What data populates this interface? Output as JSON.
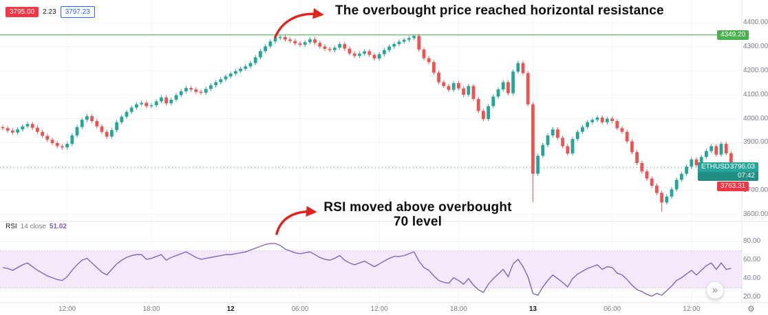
{
  "header": {
    "bid": "3795.00",
    "spread": "2.23",
    "ask": "3797.23",
    "bid_color": "#f23645",
    "ask_color": "#2962ff"
  },
  "annotations": {
    "resistance_note": "The overbought price reached horizontal resistance",
    "rsi_note_line1": "RSI moved above overbought",
    "rsi_note_line2": "70 level",
    "arrow_color": "#e0231c"
  },
  "price_axis": {
    "labels": [
      "4400.00",
      "4300.00",
      "4200.00",
      "4100.00",
      "4000.00",
      "3900.00",
      "3700.00",
      "3600.00"
    ],
    "resistance_badge": {
      "value": "4349.20",
      "color": "#4caf50"
    },
    "symbol_badge": {
      "symbol": "ETHUSD",
      "price": "3796.03",
      "countdown": "07:42",
      "color": "#26a69a"
    },
    "alert_badge": {
      "value": "3763.31",
      "color": "#f23645"
    }
  },
  "rsi_pane": {
    "label": "RSI",
    "params": "14 close",
    "value": "51.02",
    "axis_labels": [
      "80.00",
      "60.00",
      "40.00",
      "20.00"
    ]
  },
  "controls": {
    "scroll_right": "»",
    "settings_icon": "⚙"
  },
  "chart_data": {
    "type": "candlestick",
    "title": "ETHUSD intraday with RSI(14)",
    "legend_position": "none",
    "grid": true,
    "price": {
      "ylim": [
        3571,
        4495
      ],
      "gridlines": [
        3600,
        3700,
        3800,
        3900,
        4000,
        4100,
        4200,
        4300,
        4400
      ],
      "resistance_level": 4349.2,
      "last_price": 3796.03,
      "open0": 3965,
      "wick": 9,
      "up_color": "#26a69a",
      "down_color": "#ef5350",
      "closes": [
        3960,
        3950,
        3942,
        3955,
        3968,
        3978,
        3962,
        3945,
        3928,
        3912,
        3898,
        3885,
        3880,
        3895,
        3930,
        3965,
        3995,
        4010,
        3990,
        3968,
        3945,
        3925,
        3952,
        3985,
        4008,
        4028,
        4046,
        4060,
        4066,
        4052,
        4056,
        4072,
        4088,
        4064,
        4079,
        4098,
        4114,
        4128,
        4122,
        4112,
        4108,
        4124,
        4139,
        4152,
        4164,
        4176,
        4188,
        4198,
        4208,
        4218,
        4232,
        4256,
        4282,
        4302,
        4322,
        4336,
        4341,
        4330,
        4324,
        4314,
        4308,
        4319,
        4331,
        4316,
        4301,
        4291,
        4286,
        4296,
        4311,
        4292,
        4272,
        4262,
        4271,
        4281,
        4266,
        4251,
        4269,
        4286,
        4301,
        4311,
        4321,
        4329,
        4336,
        4345,
        4288,
        4252,
        4236,
        4192,
        4152,
        4136,
        4120,
        4148,
        4126,
        4100,
        4136,
        4082,
        4032,
        3998,
        4052,
        4092,
        4122,
        4152,
        4106,
        4196,
        4232,
        4190,
        4060,
        3770,
        3845,
        3890,
        3930,
        3955,
        3920,
        3885,
        3855,
        3915,
        3945,
        3965,
        3985,
        3995,
        4005,
        3985,
        4000,
        3990,
        3960,
        3945,
        3905,
        3860,
        3815,
        3780,
        3750,
        3720,
        3690,
        3650,
        3675,
        3705,
        3745,
        3770,
        3800,
        3830,
        3805,
        3840,
        3865,
        3885,
        3850,
        3895,
        3855,
        3796
      ],
      "overrides": {
        "56": {
          "high": 4349
        },
        "83": {
          "high": 4349
        },
        "107": {
          "low": 3652
        },
        "133": {
          "low": 3612
        }
      }
    },
    "rsi": {
      "period": 14,
      "source": "close",
      "value": 51.02,
      "ylim": [
        14,
        96
      ],
      "band": [
        30,
        70
      ],
      "color": "#7e57c2",
      "band_fill": "#f3e9fa",
      "band_line": "#d7bfe8",
      "values": [
        52,
        51,
        49,
        52,
        55,
        57,
        53,
        49,
        46,
        43,
        41,
        39,
        38,
        42,
        49,
        55,
        60,
        62,
        57,
        52,
        47,
        44,
        50,
        56,
        60,
        63,
        65,
        66,
        66,
        61,
        62,
        64,
        66,
        60,
        63,
        65,
        67,
        69,
        66,
        63,
        61,
        62,
        63,
        64,
        65,
        66,
        66,
        67,
        68,
        69,
        71,
        73,
        75,
        77,
        78,
        78,
        76,
        72,
        70,
        68,
        67,
        68,
        69,
        66,
        63,
        61,
        60,
        62,
        65,
        60,
        57,
        55,
        57,
        59,
        56,
        53,
        56,
        59,
        62,
        64,
        64,
        65,
        67,
        69,
        59,
        52,
        49,
        43,
        38,
        36,
        35,
        41,
        38,
        34,
        40,
        33,
        28,
        25,
        34,
        40,
        45,
        50,
        42,
        56,
        61,
        53,
        42,
        24,
        22,
        31,
        38,
        44,
        40,
        36,
        31,
        40,
        45,
        48,
        51,
        53,
        55,
        50,
        53,
        52,
        46,
        44,
        39,
        33,
        28,
        26,
        23,
        21,
        24,
        22,
        27,
        32,
        38,
        41,
        45,
        49,
        44,
        49,
        54,
        57,
        50,
        57,
        50,
        51.02
      ]
    },
    "x": {
      "count": 148,
      "ticks": [
        {
          "label": "12:00",
          "i": 13
        },
        {
          "label": "18:00",
          "i": 30
        },
        {
          "label": "12",
          "i": 46,
          "major": true
        },
        {
          "label": "06:00",
          "i": 60
        },
        {
          "label": "12:00",
          "i": 76
        },
        {
          "label": "18:00",
          "i": 92
        },
        {
          "label": "13",
          "i": 107,
          "major": true
        },
        {
          "label": "06:00",
          "i": 123
        },
        {
          "label": "12:00",
          "i": 139
        }
      ]
    }
  }
}
